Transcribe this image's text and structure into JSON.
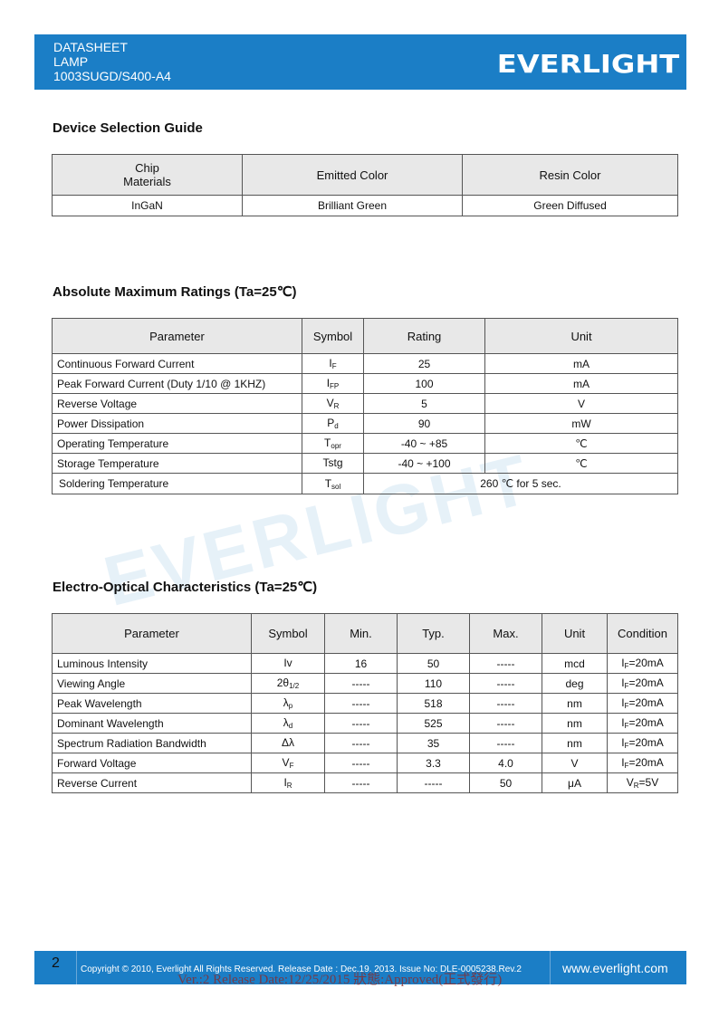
{
  "header": {
    "line1": "DATASHEET",
    "line2": "LAMP",
    "line3": "1003SUGD/S400-A4",
    "logo": "EVERLIGHT"
  },
  "selection": {
    "title": "Device Selection Guide",
    "headers": [
      "Chip\nMaterials",
      "Emitted Color",
      "Resin Color"
    ],
    "chip_line1": "Chip",
    "chip_line2": "Materials",
    "row": [
      "InGaN",
      "Brilliant Green",
      "Green Diffused"
    ]
  },
  "ratings": {
    "title": "Absolute Maximum Ratings (Ta=25℃)",
    "headers": [
      "Parameter",
      "Symbol",
      "Rating",
      "Unit"
    ],
    "rows": [
      {
        "param": "Continuous Forward Current",
        "sym": "I",
        "sub": "F",
        "rating": "25",
        "unit": "mA"
      },
      {
        "param": "Peak Forward Current (Duty 1/10 @ 1KHZ)",
        "sym": "I",
        "sub": "FP",
        "rating": "100",
        "unit": "mA"
      },
      {
        "param": "Reverse Voltage",
        "sym": "V",
        "sub": "R",
        "rating": "5",
        "unit": "V"
      },
      {
        "param": "Power Dissipation",
        "sym": "P",
        "sub": "d",
        "rating": "90",
        "unit": "mW"
      },
      {
        "param": "Operating Temperature",
        "sym": "T",
        "sub": "opr",
        "rating": "-40 ~ +85",
        "unit": "℃"
      },
      {
        "param": "Storage Temperature",
        "sym": "Tstg",
        "sub": "",
        "rating": "-40 ~ +100",
        "unit": "℃"
      }
    ],
    "solder": {
      "param": "Soldering Temperature",
      "sym": "T",
      "sub": "sol",
      "rating": "260 ℃ for 5 sec."
    }
  },
  "eo": {
    "title": "Electro-Optical Characteristics (Ta=25℃)",
    "headers": [
      "Parameter",
      "Symbol",
      "Min.",
      "Typ.",
      "Max.",
      "Unit",
      "Condition"
    ],
    "rows": [
      {
        "param": "Luminous Intensity",
        "sym": "Iv",
        "sub": "",
        "min": "16",
        "typ": "50",
        "max": "-----",
        "unit": "mcd",
        "cond": "I",
        "csub": "F",
        "crest": "=20mA"
      },
      {
        "param": "Viewing Angle",
        "sym": "2θ",
        "sub": "1/2",
        "min": "-----",
        "typ": "110",
        "max": "-----",
        "unit": "deg",
        "cond": "I",
        "csub": "F",
        "crest": "=20mA"
      },
      {
        "param": "Peak Wavelength",
        "sym": "λ",
        "sub": "p",
        "min": "-----",
        "typ": "518",
        "max": "-----",
        "unit": "nm",
        "cond": "I",
        "csub": "F",
        "crest": "=20mA"
      },
      {
        "param": "Dominant Wavelength",
        "sym": "λ",
        "sub": "d",
        "min": "-----",
        "typ": "525",
        "max": "-----",
        "unit": "nm",
        "cond": "I",
        "csub": "F",
        "crest": "=20mA"
      },
      {
        "param": "Spectrum Radiation Bandwidth",
        "sym": "Δλ",
        "sub": "",
        "min": "-----",
        "typ": "35",
        "max": "-----",
        "unit": "nm",
        "cond": "I",
        "csub": "F",
        "crest": "=20mA"
      },
      {
        "param": "Forward Voltage",
        "sym": "V",
        "sub": "F",
        "min": "-----",
        "typ": "3.3",
        "max": "4.0",
        "unit": "V",
        "cond": "I",
        "csub": "F",
        "crest": "=20mA"
      },
      {
        "param": "Reverse Current",
        "sym": "I",
        "sub": "R",
        "min": "-----",
        "typ": "-----",
        "max": "50",
        "unit": "μA",
        "cond": "V",
        "csub": "R",
        "crest": "=5V"
      }
    ]
  },
  "watermark": "EVERLIGHT",
  "footer": {
    "page": "2",
    "copyright": "Copyright © 2010, Everlight All Rights Reserved. Release Date : Dec.19. 2013. Issue No: DLE-0005238.Rev.2",
    "url": "www.everlight.com",
    "stamp": "Ver.:2   Release Date:12/25/2015     狀態:Approved(正式發行)"
  },
  "colors": {
    "brand": "#1b7ec6",
    "header_cell": "#e8e8e8"
  }
}
